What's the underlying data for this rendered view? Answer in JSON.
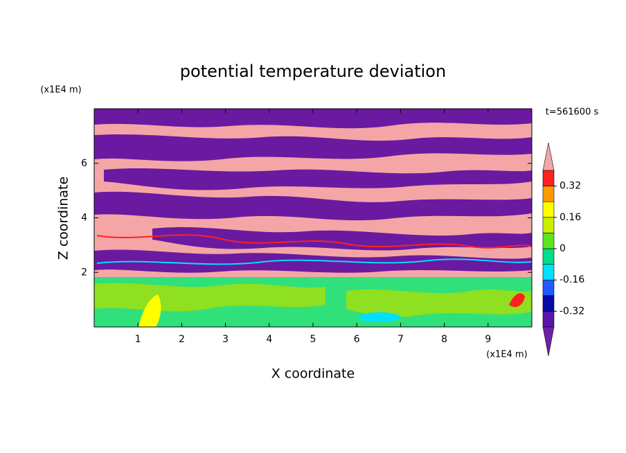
{
  "chart_data": {
    "type": "contour",
    "title": "potential temperature deviation",
    "xlabel": "X coordinate",
    "ylabel": "Z coordinate",
    "x_unit": "(x1E4 m)",
    "y_unit": "(x1E4 m)",
    "time_label": "t=561600 s",
    "xlim": [
      0,
      10
    ],
    "ylim": [
      0,
      8
    ],
    "xticks": [
      1,
      2,
      3,
      4,
      5,
      6,
      7,
      8,
      9
    ],
    "yticks": [
      2,
      4,
      6
    ],
    "colorbar": {
      "levels": [
        -0.4,
        -0.32,
        -0.24,
        -0.16,
        -0.08,
        0,
        0.08,
        0.16,
        0.24,
        0.32,
        0.4
      ],
      "colors": [
        "#5a16a8",
        "#0a0aa8",
        "#1e5aff",
        "#00e0ff",
        "#00e08a",
        "#5ce61e",
        "#c8f000",
        "#ffff00",
        "#ff9900",
        "#ff2020"
      ],
      "under_color": "#7020a8",
      "over_color": "#f4a6a6",
      "ticks": [
        -0.32,
        -0.16,
        0,
        0.16,
        0.32
      ]
    }
  }
}
